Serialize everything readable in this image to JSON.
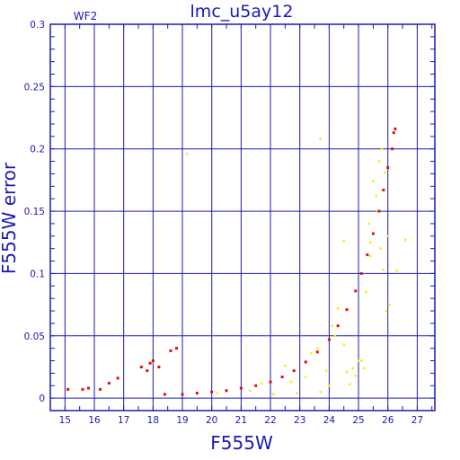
{
  "chart_data": {
    "type": "scatter",
    "title": "lmc_u5ay12",
    "chip_label": "WF2",
    "xlabel": "F555W",
    "ylabel": "F555W error",
    "xlim": [
      14.5,
      27.6
    ],
    "ylim": [
      -0.01,
      0.3
    ],
    "x_ticks": [
      "15",
      "16",
      "17",
      "18",
      "19",
      "20",
      "21",
      "22",
      "23",
      "24",
      "25",
      "26",
      "27"
    ],
    "y_ticks": [
      "0",
      "0.05",
      "0.1",
      "0.15",
      "0.2",
      "0.25",
      "0.3"
    ],
    "grid": true,
    "colors": {
      "axis": "#1a1ab4",
      "series_red": "#e01010",
      "series_yellow": "#f5f000"
    },
    "series": [
      {
        "color_name": "yellow",
        "points": [
          [
            19.15,
            0.196
          ],
          [
            20.2,
            0.004
          ],
          [
            21.3,
            0.006
          ],
          [
            21.7,
            0.012
          ],
          [
            22.1,
            0.003
          ],
          [
            22.5,
            0.026
          ],
          [
            22.7,
            0.013
          ],
          [
            22.9,
            0.004
          ],
          [
            23.2,
            0.017
          ],
          [
            23.4,
            0.036
          ],
          [
            23.6,
            0.04
          ],
          [
            23.7,
            0.005
          ],
          [
            23.9,
            0.022
          ],
          [
            24.0,
            0.01
          ],
          [
            24.1,
            0.058
          ],
          [
            24.2,
            0.05
          ],
          [
            24.3,
            0.072
          ],
          [
            24.5,
            0.043
          ],
          [
            24.6,
            0.021
          ],
          [
            24.7,
            0.011
          ],
          [
            24.8,
            0.024
          ],
          [
            24.9,
            0.018
          ],
          [
            25.0,
            0.03
          ],
          [
            25.1,
            0.03
          ],
          [
            25.2,
            0.024
          ],
          [
            25.25,
            0.085
          ],
          [
            25.35,
            0.14
          ],
          [
            25.4,
            0.125
          ],
          [
            25.5,
            0.174
          ],
          [
            25.6,
            0.162
          ],
          [
            25.65,
            0.15
          ],
          [
            25.7,
            0.19
          ],
          [
            25.75,
            0.12
          ],
          [
            25.8,
            0.2
          ],
          [
            25.85,
            0.103
          ],
          [
            25.9,
            0.181
          ],
          [
            25.95,
            0.07
          ],
          [
            26.0,
            0.13
          ],
          [
            26.05,
            0.075
          ],
          [
            26.3,
            0.102
          ],
          [
            26.6,
            0.127
          ],
          [
            23.7,
            0.208
          ],
          [
            24.5,
            0.126
          ],
          [
            25.4,
            0.114
          ]
        ]
      },
      {
        "color_name": "red",
        "points": [
          [
            15.1,
            0.007
          ],
          [
            15.6,
            0.007
          ],
          [
            15.8,
            0.008
          ],
          [
            16.2,
            0.007
          ],
          [
            16.5,
            0.012
          ],
          [
            16.8,
            0.016
          ],
          [
            17.6,
            0.025
          ],
          [
            17.8,
            0.022
          ],
          [
            17.9,
            0.028
          ],
          [
            18.0,
            0.03
          ],
          [
            18.2,
            0.025
          ],
          [
            18.6,
            0.038
          ],
          [
            18.8,
            0.04
          ],
          [
            18.4,
            0.003
          ],
          [
            19.0,
            0.003
          ],
          [
            19.5,
            0.004
          ],
          [
            20.0,
            0.005
          ],
          [
            20.5,
            0.006
          ],
          [
            21.0,
            0.008
          ],
          [
            21.5,
            0.01
          ],
          [
            22.0,
            0.013
          ],
          [
            22.4,
            0.017
          ],
          [
            22.8,
            0.022
          ],
          [
            23.2,
            0.029
          ],
          [
            23.6,
            0.037
          ],
          [
            24.0,
            0.047
          ],
          [
            24.3,
            0.058
          ],
          [
            24.6,
            0.071
          ],
          [
            24.9,
            0.086
          ],
          [
            25.1,
            0.1
          ],
          [
            25.3,
            0.115
          ],
          [
            25.5,
            0.132
          ],
          [
            25.7,
            0.15
          ],
          [
            25.85,
            0.167
          ],
          [
            26.0,
            0.185
          ],
          [
            26.15,
            0.2
          ],
          [
            26.2,
            0.213
          ],
          [
            26.25,
            0.216
          ]
        ]
      }
    ]
  }
}
